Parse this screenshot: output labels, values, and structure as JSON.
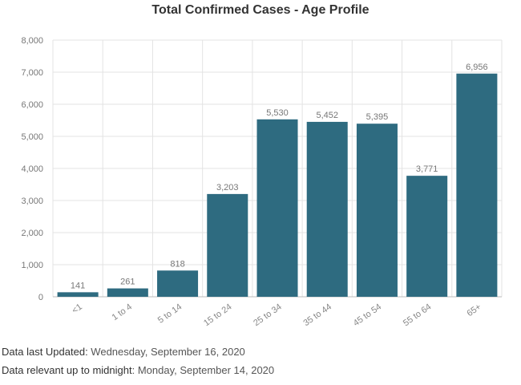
{
  "chart_data": {
    "type": "bar",
    "title": "Total Confirmed Cases - Age Profile",
    "categories": [
      "<1",
      "1 to 4",
      "5 to 14",
      "15 to 24",
      "25 to 34",
      "35 to 44",
      "45 to 54",
      "55 to 64",
      "65+"
    ],
    "values": [
      141,
      261,
      818,
      3203,
      5530,
      5452,
      5395,
      3771,
      6956
    ],
    "data_labels": [
      "141",
      "261",
      "818",
      "3,203",
      "5,530",
      "5,452",
      "5,395",
      "3,771",
      "6,956"
    ],
    "y_ticks": [
      "0",
      "1,000",
      "2,000",
      "3,000",
      "4,000",
      "5,000",
      "6,000",
      "7,000",
      "8,000"
    ],
    "ylim": [
      0,
      8000
    ],
    "grid": true,
    "bar_color": "#2e6b80",
    "xlabel": "",
    "ylabel": ""
  },
  "footer": {
    "updated_label": "Data last Updated:",
    "updated_value": " Wednesday, September 16, 2020",
    "midnight_label": "Data relevant up to midnight",
    "midnight_value": ": Monday, September 14, 2020"
  }
}
